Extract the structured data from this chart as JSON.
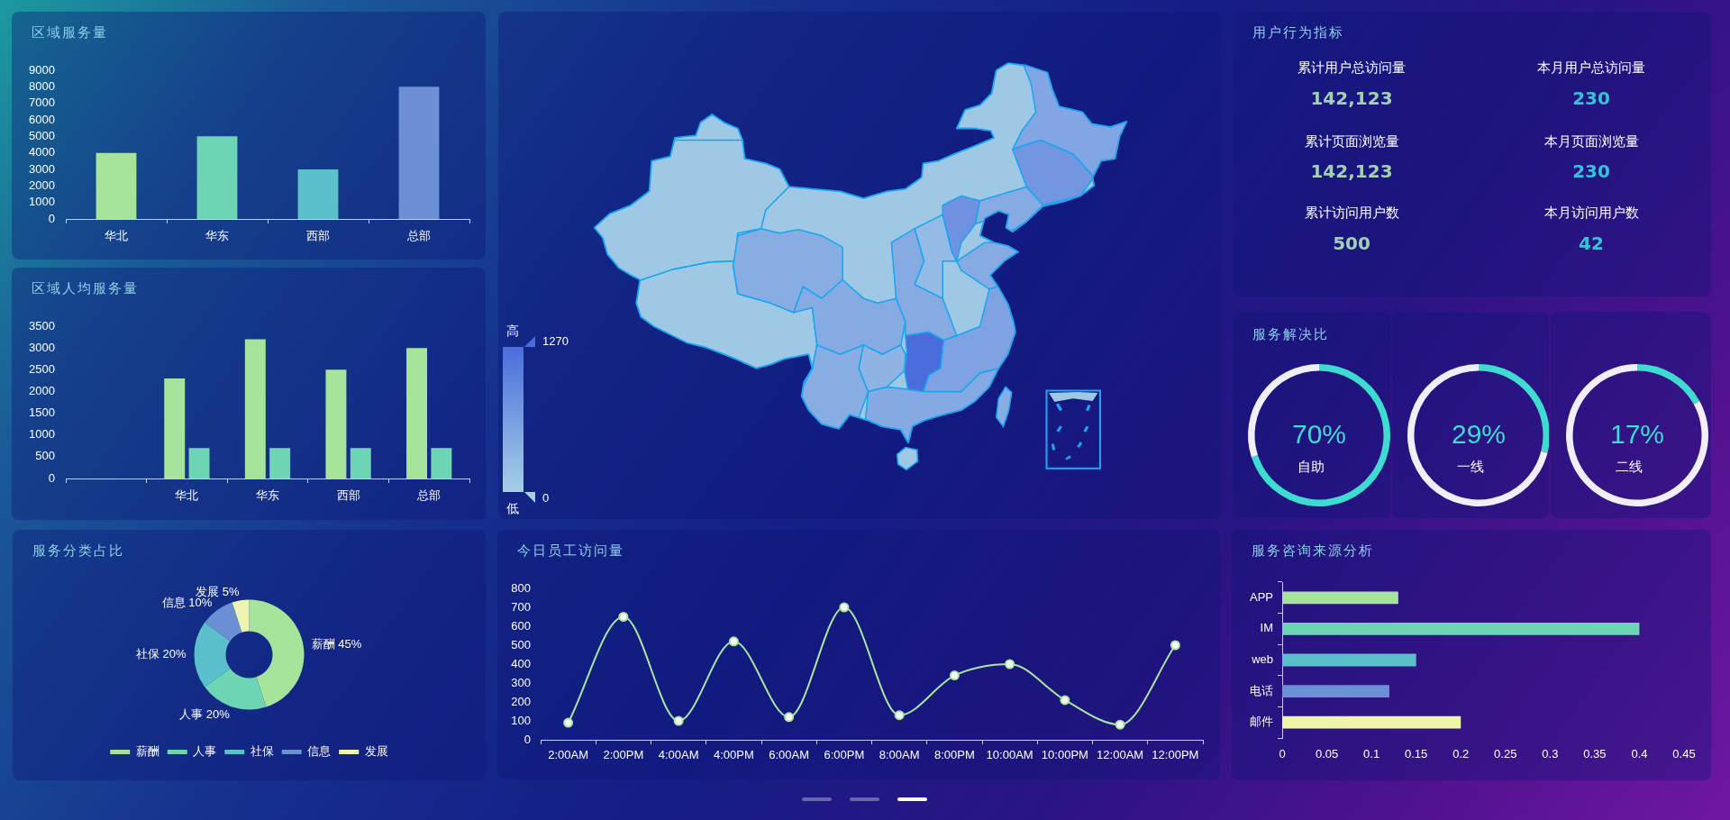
{
  "chart_data": [
    {
      "type": "bar",
      "title": "区域服务量",
      "categories": [
        "华北",
        "华东",
        "西部",
        "总部"
      ],
      "values": [
        4000,
        5000,
        3000,
        8000
      ],
      "colors": [
        "#a6e39b",
        "#6dd5b3",
        "#5bc0cc",
        "#6b90d4"
      ],
      "ylim": [
        0,
        9000
      ],
      "yticks": [
        0,
        1000,
        2000,
        3000,
        4000,
        5000,
        6000,
        7000,
        8000,
        9000
      ]
    },
    {
      "type": "other",
      "annotations": [
        "高",
        "1270",
        "0",
        "低"
      ]
    },
    {
      "type": "other",
      "title": "用户行为指标",
      "annotations": [
        "累计用户总访问量",
        "142,123",
        "本月用户总访问量",
        "230",
        "累计页面浏览量",
        "142,123",
        "本月页面浏览量",
        "230",
        "累计访问用户数",
        "500",
        "本月访问用户数",
        "42"
      ]
    },
    {
      "type": "bar",
      "title": "区域人均服务量",
      "categories": [
        null,
        "华北",
        "华东",
        "西部",
        "总部"
      ],
      "series": [
        {
          "color": "#a6e39b",
          "values": [
            null,
            2300,
            3200,
            2500,
            3000
          ]
        },
        {
          "color": "#6dd5b3",
          "values": [
            null,
            700,
            700,
            700,
            700
          ]
        }
      ],
      "ylim": [
        0,
        3500
      ],
      "yticks": [
        0,
        500,
        1000,
        1500,
        2000,
        2500,
        3000,
        3500
      ]
    },
    {
      "type": "donut",
      "title": "服务解决比",
      "categories": [
        "自助",
        null
      ],
      "values": [
        70,
        30
      ],
      "colors": [
        "#3ddbd0",
        "#f0eef6"
      ],
      "value_labels": [
        "70%",
        null
      ]
    },
    {
      "type": "donut",
      "categories": [
        "一线",
        null
      ],
      "values": [
        29,
        71
      ],
      "colors": [
        "#3ddbd0",
        "#f0eef6"
      ],
      "value_labels": [
        "29%",
        null
      ]
    },
    {
      "type": "donut",
      "categories": [
        "二线",
        null
      ],
      "values": [
        17,
        83
      ],
      "colors": [
        "#3ddbd0",
        "#f0eef6"
      ],
      "value_labels": [
        "17%",
        null
      ]
    },
    {
      "type": "donut",
      "title": "服务分类占比",
      "categories": [
        "薪酬",
        "人事",
        "社保",
        "信息",
        "发展"
      ],
      "values": [
        45,
        20,
        20,
        10,
        5
      ],
      "colors": [
        "#a6e39b",
        "#6dd5b3",
        "#5bc0cc",
        "#6b90d4",
        "#eef5b0"
      ],
      "value_labels": [
        "薪酬 45%",
        "人事 20%",
        "社保 20%",
        "信息 10%",
        "发展 5%"
      ],
      "legend": "bottom"
    },
    {
      "type": "line",
      "title": "今日员工访问量",
      "categories": [
        "2:00AM",
        "2:00PM",
        "4:00AM",
        "4:00PM",
        "6:00AM",
        "6:00PM",
        "8:00AM",
        "8:00PM",
        "10:00AM",
        "10:00PM",
        "12:00AM",
        "12:00PM"
      ],
      "series": [
        {
          "color": "#a8e6a0",
          "values": [
            90,
            650,
            100,
            520,
            120,
            700,
            130,
            340,
            400,
            210,
            80,
            500
          ]
        }
      ],
      "ylim": [
        0,
        800
      ],
      "yticks": [
        0,
        100,
        200,
        300,
        400,
        500,
        600,
        700,
        800
      ],
      "marker": "circle"
    },
    {
      "type": "bar",
      "orientation": "horizontal",
      "title": "服务咨询来源分析",
      "categories": [
        "APP",
        "IM",
        "web",
        "电话",
        "邮件"
      ],
      "values": [
        0.13,
        0.4,
        0.15,
        0.12,
        0.2
      ],
      "colors": [
        "#a6e39b",
        "#6dd5b3",
        "#5bc0cc",
        "#6b90d4",
        "#eef5a8"
      ],
      "xlim": [
        0,
        0.45
      ],
      "xticks": [
        0,
        0.05,
        0.1,
        0.15,
        0.2,
        0.25,
        0.3,
        0.35,
        0.4,
        0.45
      ]
    }
  ]
}
